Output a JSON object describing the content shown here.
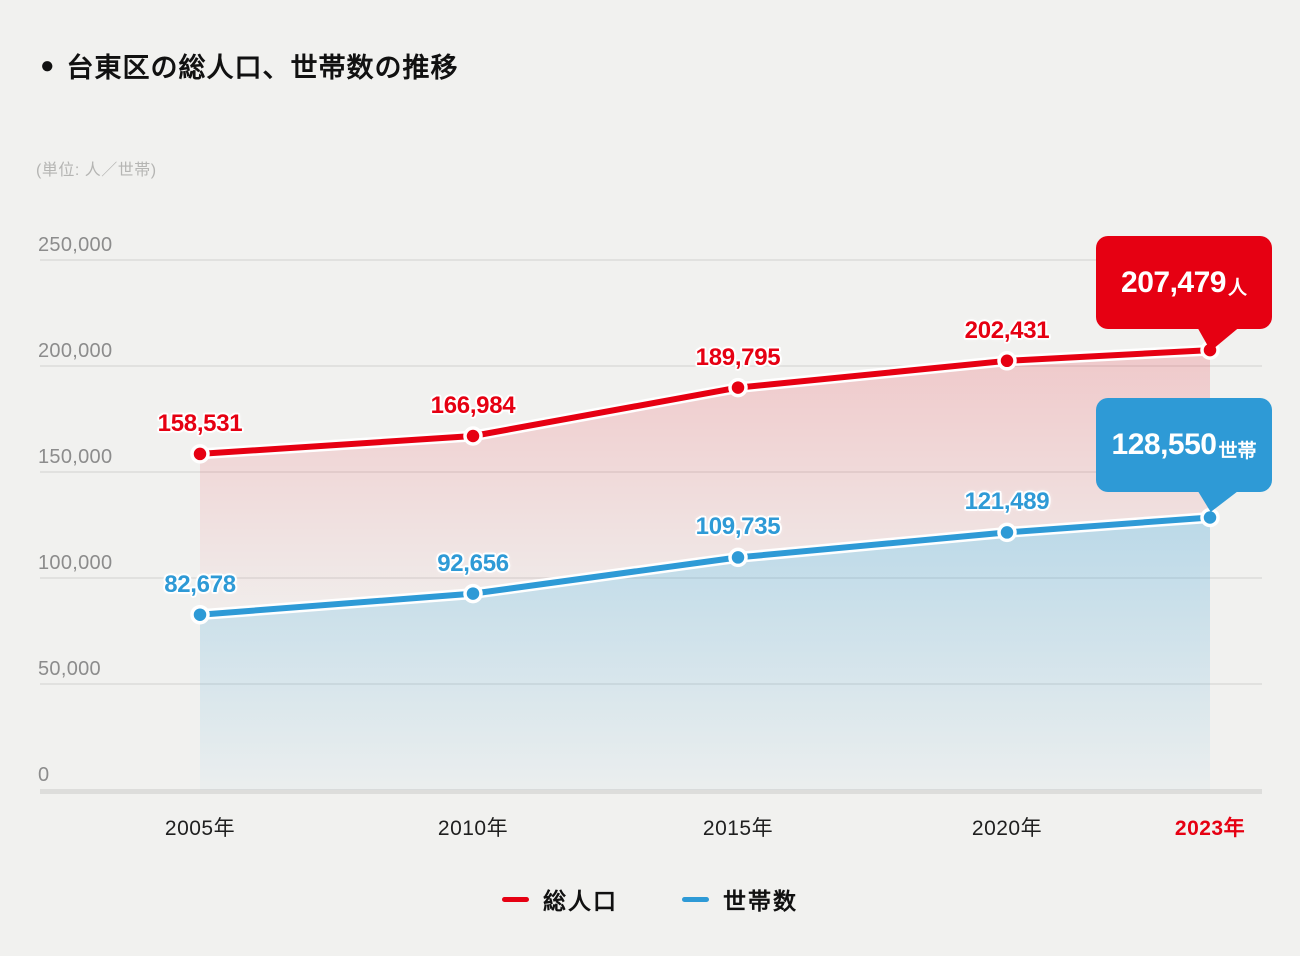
{
  "header": {
    "bullet": "●",
    "title": "台東区の総人口、世帯数の推移"
  },
  "unit_label": "(単位: 人／世帯)",
  "colors": {
    "background": "#f1f1ef",
    "population_red": "#e60012",
    "households_blue": "#2e9ad6",
    "grid": "#dcdcda",
    "axis_baseline": "#dddddb",
    "y_tick_text": "#8c8c8c",
    "x_tick_text": "#1f1f1f",
    "highlight_year_text": "#e60012"
  },
  "chart_data": {
    "type": "line",
    "title": "台東区の総人口、世帯数の推移",
    "unit": "人／世帯",
    "categories": [
      "2005年",
      "2010年",
      "2015年",
      "2020年",
      "2023年"
    ],
    "highlighted_category": "2023年",
    "y_tick_values": [
      0,
      50000,
      100000,
      150000,
      200000,
      250000
    ],
    "y_ticks": [
      "0",
      "50,000",
      "100,000",
      "150,000",
      "200,000",
      "250,000"
    ],
    "ylim": [
      0,
      250000
    ],
    "grid": true,
    "legend_position": "bottom",
    "series": [
      {
        "name": "総人口",
        "color": "#e60012",
        "values": [
          158531,
          166984,
          189795,
          202431,
          207479
        ],
        "point_labels": [
          "158,531",
          "166,984",
          "189,795",
          "202,431"
        ],
        "final_callout": {
          "number": "207,479",
          "suffix": "人"
        }
      },
      {
        "name": "世帯数",
        "color": "#2e9ad6",
        "values": [
          82678,
          92656,
          109735,
          121489,
          128550
        ],
        "point_labels": [
          "82,678",
          "92,656",
          "109,735",
          "121,489"
        ],
        "final_callout": {
          "number": "128,550",
          "suffix": "世帯"
        }
      }
    ]
  },
  "legend": {
    "items": [
      {
        "label": "総人口"
      },
      {
        "label": "世帯数"
      }
    ]
  }
}
